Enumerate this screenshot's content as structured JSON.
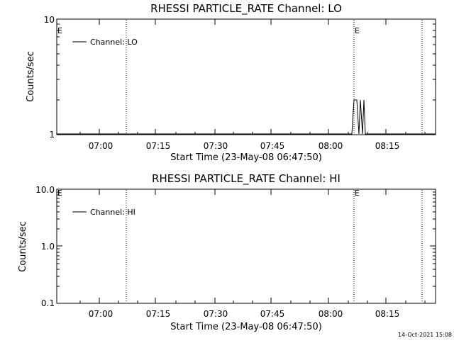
{
  "chart_data": [
    {
      "type": "line",
      "title": "RHESSI PARTICLE_RATE Channel: LO",
      "xlabel": "Start Time (23-May-08 06:47:50)",
      "ylabel": "Counts/sec",
      "x_ticks": [
        "07:00",
        "07:15",
        "07:30",
        "07:45",
        "08:00",
        "08:15"
      ],
      "y_ticks": [
        "1",
        "10"
      ],
      "y_scale": "log",
      "ylim": [
        1,
        10
      ],
      "xlim": [
        "06:47:50",
        "08:29:00"
      ],
      "legend": "top-left",
      "legend_label": "Channel: LO",
      "event_marker": "E",
      "event_lines_x": [
        "07:06:30",
        "08:06:40",
        "08:24:40"
      ],
      "event_marker_x": [
        "06:48:00",
        "08:06:40"
      ],
      "series": [
        {
          "points": [
            [
              "08:05:45",
              1
            ],
            [
              "08:06:05",
              2
            ],
            [
              "08:07:05",
              2
            ],
            [
              "08:07:20",
              1
            ],
            [
              "08:07:35",
              2
            ],
            [
              "08:07:55",
              1
            ],
            [
              "08:08:15",
              2
            ],
            [
              "08:08:35",
              1
            ]
          ]
        }
      ]
    },
    {
      "type": "line",
      "title": "RHESSI PARTICLE_RATE Channel: HI",
      "xlabel": "Start Time (23-May-08 06:47:50)",
      "ylabel": "Counts/sec",
      "x_ticks": [
        "07:00",
        "07:15",
        "07:30",
        "07:45",
        "08:00",
        "08:15"
      ],
      "y_ticks": [
        "0.1",
        "1.0",
        "10.0"
      ],
      "y_scale": "log",
      "ylim": [
        0.1,
        10
      ],
      "xlim": [
        "06:47:50",
        "08:29:00"
      ],
      "legend": "top-left",
      "legend_label": "Channel: HI",
      "event_marker": "E",
      "event_lines_x": [
        "07:06:30",
        "08:06:40",
        "08:24:40"
      ],
      "event_marker_x": [
        "06:48:00",
        "08:06:40"
      ],
      "series": [
        {
          "points": []
        }
      ]
    }
  ],
  "timestamp": "14-Oct-2021 15:08"
}
